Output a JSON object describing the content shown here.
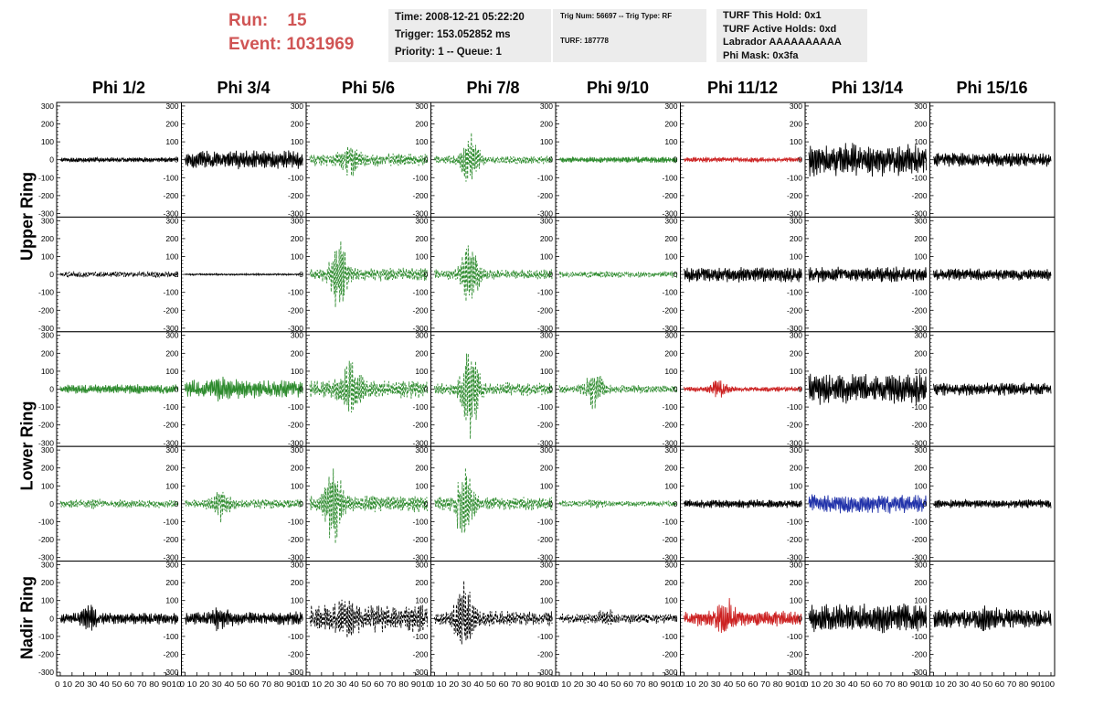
{
  "header": {
    "run_label": "Run:",
    "run_value": "15",
    "event_label": "Event:",
    "event_value": "1031969"
  },
  "info_box_1": {
    "time": "Time: 2008-12-21 05:22:20",
    "trigger": "Trigger: 153.052852 ms",
    "priority": "Priority: 1 -- Queue: 1"
  },
  "info_box_2": {
    "trig": "Trig Num: 56697 -- Trig Type: RF",
    "turf": "TURF: 187778"
  },
  "info_box_3": {
    "hold": "TURF This Hold: 0x1",
    "active": "TURF Active Holds: 0xd",
    "labrador": "Labrador AAAAAAAAAA",
    "phimask": "Phi Mask: 0x3fa"
  },
  "chart_data": {
    "type": "line",
    "columns": [
      "Phi 1/2",
      "Phi 3/4",
      "Phi 5/6",
      "Phi 7/8",
      "Phi 9/10",
      "Phi 11/12",
      "Phi 13/14",
      "Phi 15/16"
    ],
    "rows": [
      "Upper Ring",
      "Lower Ring",
      "Nadir Ring"
    ],
    "row_label_spans": [
      2,
      2,
      1
    ],
    "ylim": [
      -320,
      320
    ],
    "yticks": [
      -300,
      -200,
      -100,
      0,
      100,
      200,
      300
    ],
    "xlim": [
      0,
      100
    ],
    "xtick_label_strings": [
      "0 10 20 30 40 50 60 70 80 9010",
      "0 10 20 30 40 50 60 70 80 9010",
      "0 10 20 30 40 50 60 70 80 9010",
      "0 10 20 30 40 50 60 70 80 9010",
      "0 10 20 30 40 50 60 70 80 9010",
      "0 10 20 30 40 50 60 70 80 9010",
      "0 10 20 30 40 50 60 70 80 9010",
      "0 10 20 30 40 50 60 70 80 90100"
    ],
    "colors": {
      "black": "#000000",
      "green": "#2e8b2e",
      "red": "#cc2222",
      "blue": "#2233aa"
    },
    "panels": [
      [
        {
          "color": "black",
          "dashed": false,
          "amp": 15,
          "peak": 0,
          "peak_pos": 50,
          "seed": 1
        },
        {
          "color": "black",
          "dashed": false,
          "amp": 55,
          "peak": 20,
          "peak_pos": 50,
          "seed": 2
        },
        {
          "color": "green",
          "dashed": true,
          "amp": 40,
          "peak": 110,
          "peak_pos": 35,
          "seed": 3
        },
        {
          "color": "green",
          "dashed": true,
          "amp": 25,
          "peak": 170,
          "peak_pos": 30,
          "seed": 4
        },
        {
          "color": "green",
          "dashed": false,
          "amp": 18,
          "peak": 0,
          "peak_pos": 50,
          "seed": 5
        },
        {
          "color": "red",
          "dashed": false,
          "amp": 15,
          "peak": 0,
          "peak_pos": 50,
          "seed": 6
        },
        {
          "color": "black",
          "dashed": false,
          "amp": 95,
          "peak": 20,
          "peak_pos": 50,
          "seed": 7
        },
        {
          "color": "black",
          "dashed": false,
          "amp": 40,
          "peak": 20,
          "peak_pos": 85,
          "seed": 8
        }
      ],
      [
        {
          "color": "black",
          "dashed": true,
          "amp": 18,
          "peak": 20,
          "peak_pos": 90,
          "seed": 11
        },
        {
          "color": "black",
          "dashed": false,
          "amp": 5,
          "peak": 0,
          "peak_pos": 50,
          "seed": 12
        },
        {
          "color": "green",
          "dashed": true,
          "amp": 40,
          "peak": 230,
          "peak_pos": 25,
          "seed": 13
        },
        {
          "color": "green",
          "dashed": true,
          "amp": 30,
          "peak": 210,
          "peak_pos": 30,
          "seed": 14
        },
        {
          "color": "green",
          "dashed": true,
          "amp": 20,
          "peak": 0,
          "peak_pos": 50,
          "seed": 15
        },
        {
          "color": "black",
          "dashed": false,
          "amp": 45,
          "peak": 0,
          "peak_pos": 50,
          "seed": 16
        },
        {
          "color": "black",
          "dashed": false,
          "amp": 45,
          "peak": 40,
          "peak_pos": 70,
          "seed": 17
        },
        {
          "color": "black",
          "dashed": false,
          "amp": 35,
          "peak": 0,
          "peak_pos": 50,
          "seed": 18
        }
      ],
      [
        {
          "color": "green",
          "dashed": false,
          "amp": 28,
          "peak": 30,
          "peak_pos": 60,
          "seed": 21
        },
        {
          "color": "green",
          "dashed": false,
          "amp": 55,
          "peak": 80,
          "peak_pos": 30,
          "seed": 22
        },
        {
          "color": "green",
          "dashed": true,
          "amp": 55,
          "peak": 220,
          "peak_pos": 35,
          "seed": 23
        },
        {
          "color": "green",
          "dashed": true,
          "amp": 40,
          "peak": 300,
          "peak_pos": 30,
          "seed": 24
        },
        {
          "color": "green",
          "dashed": true,
          "amp": 25,
          "peak": 130,
          "peak_pos": 30,
          "seed": 25
        },
        {
          "color": "red",
          "dashed": false,
          "amp": 15,
          "peak": 60,
          "peak_pos": 30,
          "seed": 26
        },
        {
          "color": "black",
          "dashed": false,
          "amp": 90,
          "peak": 20,
          "peak_pos": 50,
          "seed": 27
        },
        {
          "color": "black",
          "dashed": false,
          "amp": 38,
          "peak": 20,
          "peak_pos": 60,
          "seed": 28
        }
      ],
      [
        {
          "color": "green",
          "dashed": true,
          "amp": 25,
          "peak": 30,
          "peak_pos": 30,
          "seed": 31
        },
        {
          "color": "green",
          "dashed": true,
          "amp": 28,
          "peak": 120,
          "peak_pos": 30,
          "seed": 32
        },
        {
          "color": "green",
          "dashed": true,
          "amp": 50,
          "peak": 260,
          "peak_pos": 20,
          "seed": 33
        },
        {
          "color": "green",
          "dashed": true,
          "amp": 40,
          "peak": 240,
          "peak_pos": 25,
          "seed": 34
        },
        {
          "color": "green",
          "dashed": true,
          "amp": 18,
          "peak": 30,
          "peak_pos": 30,
          "seed": 35
        },
        {
          "color": "black",
          "dashed": false,
          "amp": 25,
          "peak": 0,
          "peak_pos": 50,
          "seed": 36
        },
        {
          "color": "blue",
          "dashed": false,
          "amp": 55,
          "peak": 40,
          "peak_pos": 30,
          "seed": 37
        },
        {
          "color": "black",
          "dashed": false,
          "amp": 25,
          "peak": 0,
          "peak_pos": 50,
          "seed": 38
        }
      ],
      [
        {
          "color": "black",
          "dashed": false,
          "amp": 35,
          "peak": 90,
          "peak_pos": 25,
          "seed": 41
        },
        {
          "color": "black",
          "dashed": false,
          "amp": 40,
          "peak": 90,
          "peak_pos": 30,
          "seed": 42
        },
        {
          "color": "black",
          "dashed": true,
          "amp": 80,
          "peak": 130,
          "peak_pos": 30,
          "seed": 43
        },
        {
          "color": "black",
          "dashed": true,
          "amp": 45,
          "peak": 230,
          "peak_pos": 25,
          "seed": 44
        },
        {
          "color": "black",
          "dashed": true,
          "amp": 30,
          "peak": 60,
          "peak_pos": 40,
          "seed": 45
        },
        {
          "color": "red",
          "dashed": false,
          "amp": 45,
          "peak": 140,
          "peak_pos": 35,
          "seed": 46
        },
        {
          "color": "black",
          "dashed": false,
          "amp": 85,
          "peak": 20,
          "peak_pos": 50,
          "seed": 47
        },
        {
          "color": "black",
          "dashed": false,
          "amp": 55,
          "peak": 100,
          "peak_pos": 45,
          "seed": 48
        }
      ]
    ]
  }
}
